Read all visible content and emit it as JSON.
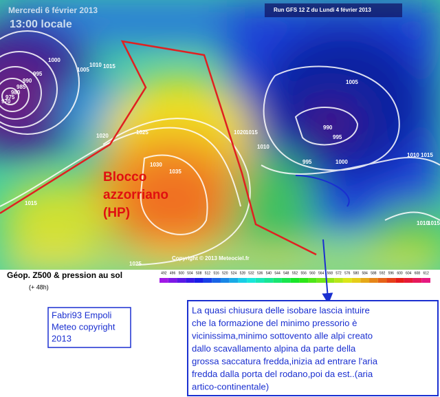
{
  "header": {
    "date": "Mercredi 6 février 2013",
    "time": "13:00 locale",
    "run": "Run GFS 12 Z du Lundi 4 février 2013"
  },
  "map": {
    "annotation": [
      "Blocco",
      "azzorriano",
      "(HP)"
    ],
    "copyright": "Copyright © 2013 Meteociel.fr",
    "isobars": [
      1000,
      995,
      990,
      985,
      980,
      975,
      970,
      1005,
      1010,
      1015,
      1020,
      1025,
      1030,
      1035,
      1015,
      1025,
      1020,
      1015,
      1010,
      995,
      1000,
      990,
      995,
      1005,
      1010,
      1015,
      1010,
      1015
    ]
  },
  "legend": {
    "title": "Géop. Z500 & pression au sol",
    "lead": "(+ 48h)",
    "scale": [
      492,
      496,
      500,
      504,
      508,
      512,
      516,
      520,
      524,
      528,
      532,
      536,
      540,
      544,
      548,
      552,
      556,
      560,
      564,
      568,
      572,
      576,
      580,
      584,
      588,
      592,
      596,
      600,
      604,
      608,
      612
    ]
  },
  "notes": {
    "author": [
      "Fabri93 Empoli",
      "Meteo copyright",
      "2013"
    ],
    "comment": [
      "La quasi chiusura delle isobare lascia intuire",
      "che la formazione del minimo pressorio è",
      "vicinissima,minimo sottovento alle alpi creato",
      "dallo scavallamento alpina da parte della",
      "grossa saccatura fredda,inizia ad entrare l'aria",
      "fredda dalla porta del rodano,poi da est..(aria",
      "artico-continentale)"
    ]
  }
}
